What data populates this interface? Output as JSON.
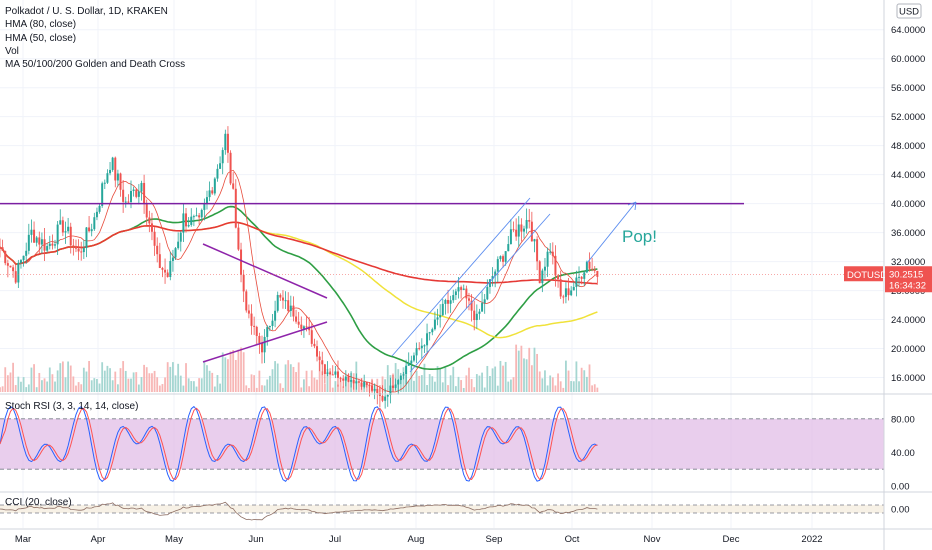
{
  "legend": {
    "title": "Polkadot / U. S. Dollar, 1D, KRAKEN",
    "hma80": "HMA (80, close)",
    "hma50": "HMA (50, close)",
    "vol": "Vol",
    "ma": "MA 50/100/200 Golden and Death Cross"
  },
  "currency": "USD",
  "ticker": "DOTUSD",
  "price_label": "30.2515",
  "countdown": "16:34:32",
  "annotation": "Pop!",
  "stoch_label": "Stoch RSI (3, 3, 14, 14, close)",
  "cci_label": "CCI (20, close)",
  "colors": {
    "up": "#26a69a",
    "down": "#ef5350",
    "ma50": "#2e9e44",
    "ma100": "#f0e23a",
    "ma200": "#e53935",
    "hma80": "#e74c3c",
    "hma50": "#a0522d",
    "resistance": "#7b1fa2",
    "channel": "#5b8def",
    "triangle": "#8e24aa",
    "stoch_band": "#e1bee7",
    "k": "#2962ff",
    "d": "#ff5252"
  },
  "chart_data": [
    {
      "type": "candlestick",
      "name": "Polkadot / U. S. Dollar, 1D, KRAKEN",
      "x_ticks": [
        "Mar",
        "Apr",
        "May",
        "Jun",
        "Jul",
        "Aug",
        "Sep",
        "Oct",
        "Nov",
        "Dec",
        "2022"
      ],
      "y_ticks": [
        "16.0000",
        "20.0000",
        "24.0000",
        "28.0000",
        "32.0000",
        "36.0000",
        "40.0000",
        "44.0000",
        "48.0000",
        "52.0000",
        "56.0000",
        "60.0000",
        "64.0000"
      ],
      "y_range": [
        14,
        67
      ],
      "last_price": 30.2515,
      "key_prices": [
        {
          "x": "Mar",
          "y": 34
        },
        {
          "x": "Apr",
          "y": 38
        },
        {
          "x": "mid-Apr",
          "y": 46
        },
        {
          "x": "May",
          "y": 36
        },
        {
          "x": "mid-May",
          "y": 49
        },
        {
          "x": "late-May",
          "y": 19
        },
        {
          "x": "Jun",
          "y": 27
        },
        {
          "x": "Jul",
          "y": 16
        },
        {
          "x": "mid-Jul",
          "y": 13
        },
        {
          "x": "Aug",
          "y": 20
        },
        {
          "x": "mid-Aug",
          "y": 26
        },
        {
          "x": "early-Sep",
          "y": 33
        },
        {
          "x": "mid-Sep",
          "y": 38
        },
        {
          "x": "late-Sep",
          "y": 27
        },
        {
          "x": "Oct",
          "y": 30.25
        }
      ],
      "resistance_level": 40,
      "moving_averages": [
        "MA 50",
        "MA 100",
        "MA 200",
        "HMA (80, close)",
        "HMA (50, close)"
      ]
    },
    {
      "type": "line",
      "name": "Stoch RSI (3, 3, 14, 14, close)",
      "y_ticks": [
        "0.00",
        "40.00",
        "80.00"
      ],
      "bands": [
        20,
        80
      ],
      "series": [
        "%K",
        "%D"
      ]
    },
    {
      "type": "line",
      "name": "CCI (20, close)",
      "y_ticks": [
        "0.00"
      ]
    }
  ]
}
